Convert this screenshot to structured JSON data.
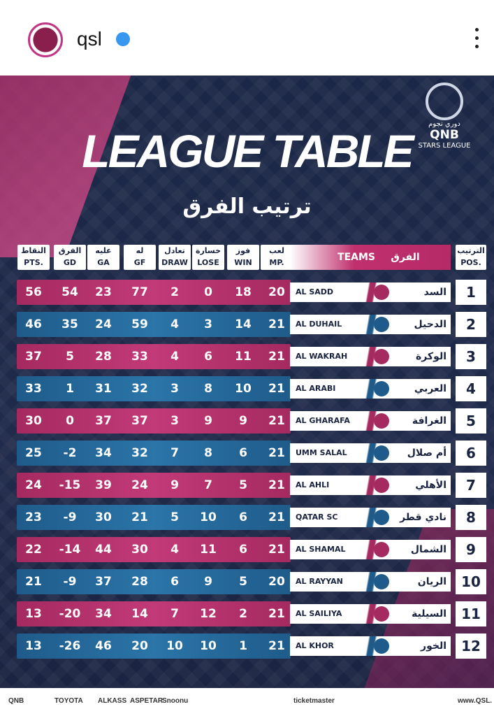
{
  "header": {
    "username": "qsl"
  },
  "poster": {
    "title": "LEAGUE TABLE",
    "subtitle": "ترتيب الفرق",
    "logo": {
      "brand": "QNB",
      "arabic": "دوري نجوم",
      "english": "STARS LEAGUE"
    },
    "table": {
      "columns": [
        {
          "ar": "النقاط",
          "en": "PTS."
        },
        {
          "ar": "الفرق",
          "en": "GD"
        },
        {
          "ar": "عليه",
          "en": "GA"
        },
        {
          "ar": "له",
          "en": "GF"
        },
        {
          "ar": "تعادل",
          "en": "DRAW"
        },
        {
          "ar": "خسارة",
          "en": "LOSE"
        },
        {
          "ar": "فوز",
          "en": "WIN"
        },
        {
          "ar": "لعب",
          "en": "MP."
        },
        {
          "ar": "الفرق",
          "en": "TEAMS"
        },
        {
          "ar": "الترتيب",
          "en": "POS."
        }
      ],
      "rows": [
        [
          56,
          54,
          23,
          77,
          2,
          0,
          18,
          20,
          "AL SADD",
          "السد",
          1
        ],
        [
          46,
          35,
          24,
          59,
          4,
          3,
          14,
          21,
          "AL DUHAIL",
          "الدحيل",
          2
        ],
        [
          37,
          5,
          28,
          33,
          4,
          6,
          11,
          21,
          "AL WAKRAH",
          "الوكرة",
          3
        ],
        [
          33,
          1,
          31,
          32,
          3,
          8,
          10,
          21,
          "AL ARABI",
          "العربي",
          4
        ],
        [
          30,
          0,
          37,
          37,
          3,
          9,
          9,
          21,
          "AL GHARAFA",
          "الغرافة",
          5
        ],
        [
          25,
          -2,
          34,
          32,
          7,
          8,
          6,
          21,
          "UMM SALAL",
          "أم صلال",
          6
        ],
        [
          24,
          -15,
          39,
          24,
          9,
          7,
          5,
          21,
          "AL AHLI",
          "الأهلي",
          7
        ],
        [
          23,
          -9,
          30,
          21,
          5,
          10,
          6,
          21,
          "QATAR SC",
          "نادي قطر",
          8
        ],
        [
          22,
          -14,
          44,
          30,
          4,
          11,
          6,
          21,
          "AL SHAMAL",
          "الشمال",
          9
        ],
        [
          21,
          -9,
          37,
          28,
          6,
          9,
          5,
          20,
          "AL RAYYAN",
          "الريان",
          10
        ],
        [
          13,
          -20,
          34,
          14,
          7,
          12,
          2,
          21,
          "AL SAILIYA",
          "السيلية",
          11
        ],
        [
          13,
          -26,
          46,
          20,
          10,
          10,
          1,
          21,
          "AL KHOR",
          "الخور",
          12
        ]
      ]
    }
  },
  "sponsors": [
    "QNB",
    "TOYOTA",
    "ALKASS",
    "ASPETAR",
    "Snoonu",
    "ticketmaster",
    "www.QSL."
  ]
}
